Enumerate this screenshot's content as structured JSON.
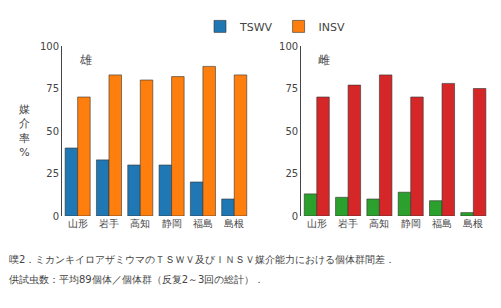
{
  "chart_data": [
    {
      "type": "bar",
      "title": "雄",
      "ylabel": "媒介率%",
      "categories": [
        "山形",
        "岩手",
        "高知",
        "静岡",
        "福島",
        "島根"
      ],
      "series": [
        {
          "name": "TSWV",
          "values": [
            40,
            33,
            30,
            30,
            20,
            10
          ]
        },
        {
          "name": "INSV",
          "values": [
            70,
            83,
            80,
            82,
            88,
            83
          ]
        }
      ],
      "ylim": [
        0,
        100
      ],
      "yticks": [
        0,
        25,
        50,
        75,
        100
      ],
      "grid": false,
      "legend": "top"
    },
    {
      "type": "bar",
      "title": "雌",
      "categories": [
        "山形",
        "岩手",
        "高知",
        "静岡",
        "福島",
        "島根"
      ],
      "series": [
        {
          "name": "TSWV",
          "values": [
            13,
            11,
            10,
            14,
            9,
            2
          ]
        },
        {
          "name": "INSV",
          "values": [
            70,
            77,
            83,
            70,
            78,
            75
          ]
        }
      ],
      "ylim": [
        0,
        100
      ],
      "yticks": [
        0,
        25,
        50,
        75,
        100
      ],
      "grid": false
    }
  ],
  "annotations": [
    "噗2．ミカンキイロアザミウマのＴＳＷＶ及びＩＮＳＶ媒介能力における個体群間差．",
    "供試虫数：平均89個体／個体群（反复2～3回の総計）．"
  ]
}
